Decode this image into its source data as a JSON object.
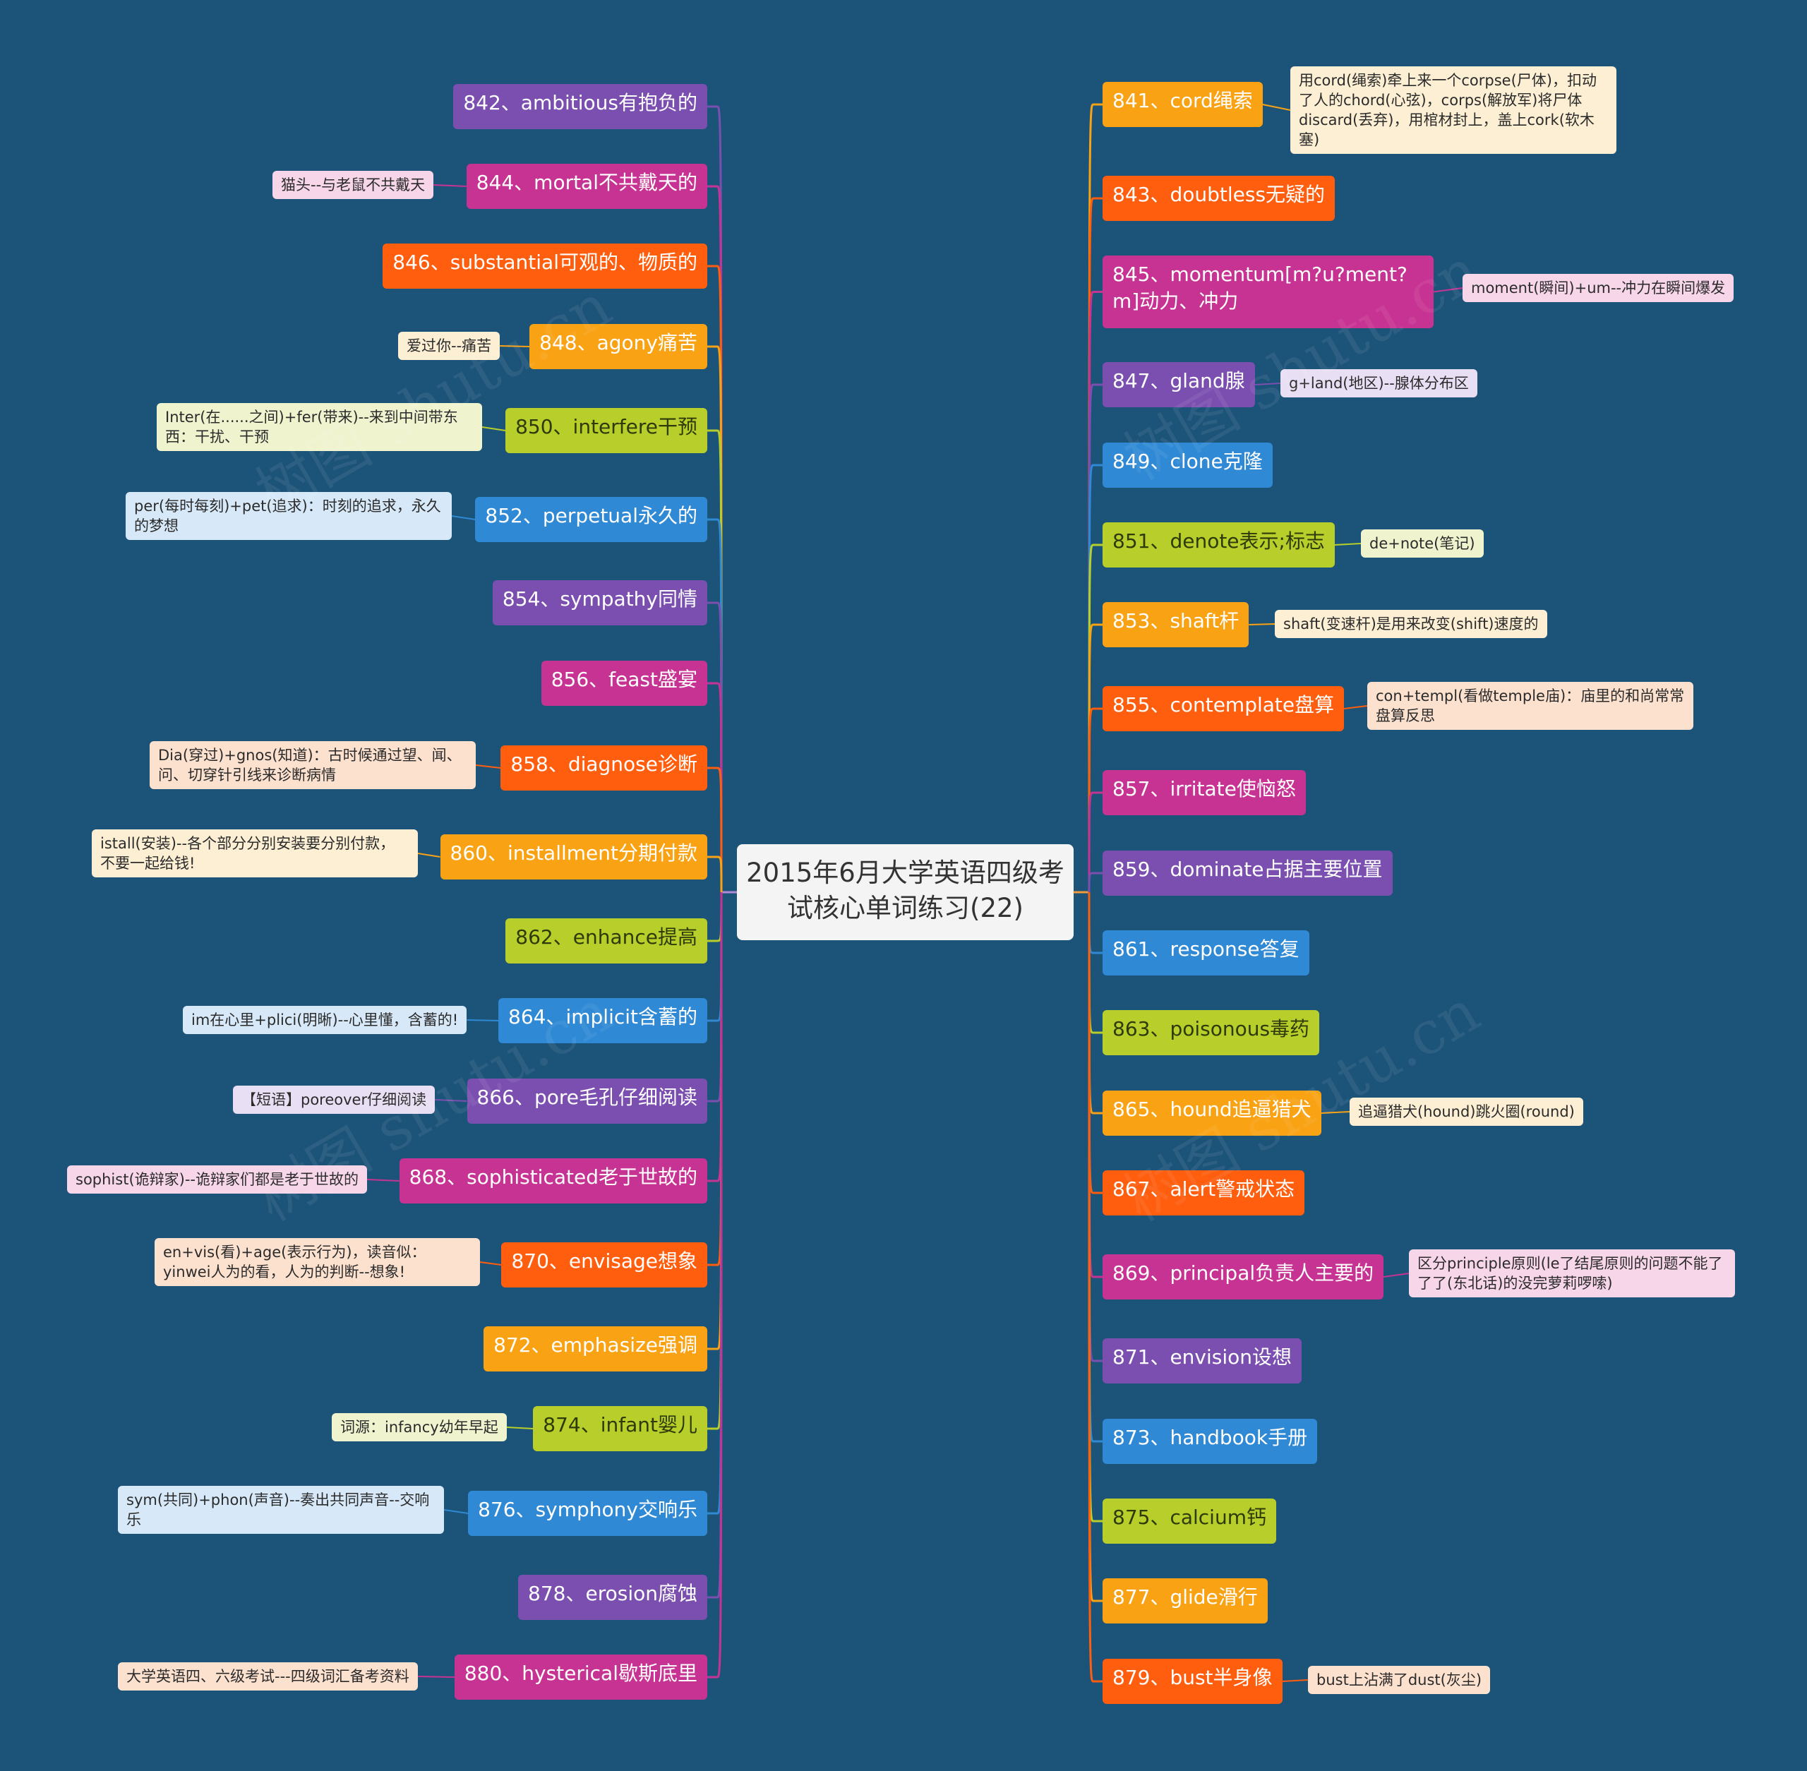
{
  "root": {
    "title": "2015年6月大学英语四级考试核心单词练习(22)"
  },
  "watermark": "树图 shutu.cn",
  "left": [
    {
      "label": "842、ambitious有抱负的",
      "color": "purple"
    },
    {
      "label": "844、mortal不共戴天的",
      "color": "magenta",
      "note": "猫头--与老鼠不共戴天"
    },
    {
      "label": "846、substantial可观的、物质的",
      "color": "orange"
    },
    {
      "label": "848、agony痛苦",
      "color": "amber",
      "note": "爱过你--痛苦"
    },
    {
      "label": "850、interfere干预",
      "color": "lime",
      "note": "Inter(在......之间)+fer(带来)--来到中间带东西：干扰、干预"
    },
    {
      "label": "852、perpetual永久的",
      "color": "blue",
      "note": "per(每时每刻)+pet(追求)：时刻的追求，永久的梦想"
    },
    {
      "label": "854、sympathy同情",
      "color": "purple"
    },
    {
      "label": "856、feast盛宴",
      "color": "magenta"
    },
    {
      "label": "858、diagnose诊断",
      "color": "orange",
      "note": "Dia(穿过)+gnos(知道)：古时候通过望、闻、问、切穿针引线来诊断病情"
    },
    {
      "label": "860、installment分期付款",
      "color": "amber",
      "note": "istall(安装)--各个部分分别安装要分别付款，不要一起给钱!"
    },
    {
      "label": "862、enhance提高",
      "color": "lime"
    },
    {
      "label": "864、implicit含蓄的",
      "color": "blue",
      "note": "im在心里+plici(明晰)--心里懂，含蓄的!"
    },
    {
      "label": "866、pore毛孔仔细阅读",
      "color": "purple",
      "note": "【短语】poreover仔细阅读"
    },
    {
      "label": "868、sophisticated老于世故的",
      "color": "magenta",
      "note": "sophist(诡辩家)--诡辩家们都是老于世故的"
    },
    {
      "label": "870、envisage想象",
      "color": "orange",
      "note": "en+vis(看)+age(表示行为)，读音似：yinwei人为的看，人为的判断--想象!"
    },
    {
      "label": "872、emphasize强调",
      "color": "amber"
    },
    {
      "label": "874、infant婴儿",
      "color": "lime",
      "note": "词源：infancy幼年早起"
    },
    {
      "label": "876、symphony交响乐",
      "color": "blue",
      "note": "sym(共同)+phon(声音)--奏出共同声音--交响乐"
    },
    {
      "label": "878、erosion腐蚀",
      "color": "purple"
    },
    {
      "label": "880、hysterical歇斯底里",
      "color": "magenta",
      "note": "大学英语四、六级考试---四级词汇备考资料"
    }
  ],
  "right": [
    {
      "label": "841、cord绳索",
      "color": "amber",
      "note": "用cord(绳索)牵上来一个corpse(尸体)，扣动了人的chord(心弦)，corps(解放军)将尸体discard(丢弃)，用棺材封上，盖上cork(软木塞)"
    },
    {
      "label": "843、doubtless无疑的",
      "color": "orange"
    },
    {
      "label": "845、momentum[m?u?ment?m]动力、冲力",
      "color": "magenta",
      "note": "moment(瞬间)+um--冲力在瞬间爆发"
    },
    {
      "label": "847、gland腺",
      "color": "purple",
      "note": "g+land(地区)--腺体分布区"
    },
    {
      "label": "849、clone克隆",
      "color": "blue"
    },
    {
      "label": "851、denote表示;标志",
      "color": "lime",
      "note": "de+note(笔记)"
    },
    {
      "label": "853、shaft杆",
      "color": "amber",
      "note": "shaft(变速杆)是用来改变(shift)速度的"
    },
    {
      "label": "855、contemplate盘算",
      "color": "orange",
      "note": "con+templ(看做temple庙)：庙里的和尚常常盘算反思"
    },
    {
      "label": "857、irritate使恼怒",
      "color": "magenta"
    },
    {
      "label": "859、dominate占据主要位置",
      "color": "purple"
    },
    {
      "label": "861、response答复",
      "color": "blue"
    },
    {
      "label": "863、poisonous毒药",
      "color": "lime"
    },
    {
      "label": "865、hound追逼猎犬",
      "color": "amber",
      "note": "追逼猎犬(hound)跳火圈(round)"
    },
    {
      "label": "867、alert警戒状态",
      "color": "orange"
    },
    {
      "label": "869、principal负责人主要的",
      "color": "magenta",
      "note": "区分principle原则(le了结尾原则的问题不能了了了(东北话)的没完萝莉啰嗦)"
    },
    {
      "label": "871、envision设想",
      "color": "purple"
    },
    {
      "label": "873、handbook手册",
      "color": "blue"
    },
    {
      "label": "875、calcium钙",
      "color": "lime"
    },
    {
      "label": "877、glide滑行",
      "color": "amber"
    },
    {
      "label": "879、bust半身像",
      "color": "orange",
      "note": "bust上沾满了dust(灰尘)"
    }
  ],
  "colors": {
    "purple": "#7b4fb0",
    "magenta": "#c73393",
    "orange": "#fe5e0e",
    "amber": "#f9a214",
    "lime": "#b7ce2b",
    "blue": "#2f89d4",
    "background": "#1c5378"
  }
}
